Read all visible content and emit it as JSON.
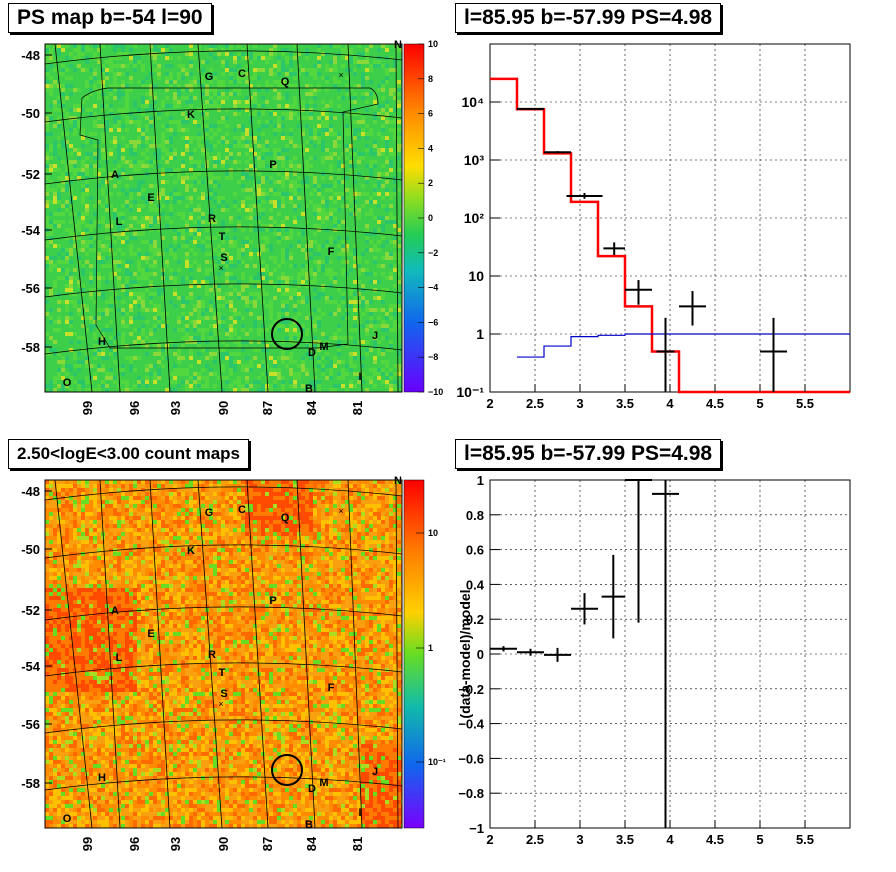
{
  "titles": {
    "ps_map": "PS map b=-54 l=90",
    "spectrum": "l=85.95 b=-57.99 PS=4.98",
    "count_map": "2.50<logE<3.00 count maps",
    "residual": "l=85.95 b=-57.99 PS=4.98"
  },
  "colors": {
    "data": "#000000",
    "model": "#ff0000",
    "background_model": "#0000cc",
    "grid": "#000000"
  },
  "maps": {
    "y_ticks": [
      "-48",
      "-50",
      "-52",
      "-54",
      "-56",
      "-58"
    ],
    "x_ticks": [
      "99",
      "96",
      "93",
      "90",
      "87",
      "84",
      "81"
    ],
    "ps_colorbar_ticks": [
      "10",
      "8",
      "6",
      "4",
      "2",
      "0",
      "−2",
      "−4",
      "−6",
      "−8",
      "−10"
    ],
    "count_colorbar_ticks": [
      "10",
      "1",
      "10⁻¹"
    ],
    "sources": [
      {
        "label": "N"
      },
      {
        "label": "G"
      },
      {
        "label": "C"
      },
      {
        "label": "Q"
      },
      {
        "label": "K"
      },
      {
        "label": "P"
      },
      {
        "label": "A"
      },
      {
        "label": "E"
      },
      {
        "label": "L"
      },
      {
        "label": "R"
      },
      {
        "label": "T"
      },
      {
        "label": "S"
      },
      {
        "label": "F"
      },
      {
        "label": "J"
      },
      {
        "label": "H"
      },
      {
        "label": "D"
      },
      {
        "label": "M"
      },
      {
        "label": "O"
      },
      {
        "label": "B"
      },
      {
        "label": "I"
      }
    ]
  },
  "chart_data": [
    {
      "type": "line",
      "panel": "spectrum",
      "title": "l=85.95 b=-57.99 PS=4.98",
      "xlim": [
        2,
        6
      ],
      "ylim": [
        0.1,
        100000
      ],
      "yscale": "log",
      "grid": true,
      "x_ticks": [
        "2",
        "2.5",
        "3",
        "3.5",
        "4",
        "4.5",
        "5",
        "5.5"
      ],
      "y_ticks": [
        "10⁴",
        "10³",
        "10²",
        "10",
        "1",
        "10⁻¹"
      ],
      "series": [
        {
          "role": "model",
          "style": "step",
          "bin_edges": [
            2.0,
            2.3,
            2.6,
            2.9,
            3.2,
            3.5,
            3.8,
            4.1,
            4.4,
            4.7,
            5.0,
            5.3,
            5.6,
            5.9,
            6.0
          ],
          "values": [
            25000,
            7500,
            1300,
            190,
            22,
            3,
            0.5,
            0.1,
            0.1,
            0.1,
            0.1,
            0.1,
            0.1,
            0.1
          ]
        },
        {
          "role": "background",
          "style": "step",
          "bin_edges": [
            2.3,
            2.6,
            2.9,
            3.2,
            3.5,
            6.0
          ],
          "values": [
            0.4,
            0.62,
            0.9,
            0.95,
            1.0
          ]
        },
        {
          "role": "data",
          "style": "errorbar",
          "points": [
            {
              "x": 2.45,
              "xerr": 0.15,
              "y": 7600,
              "ylo": 7400,
              "yhi": 7800
            },
            {
              "x": 2.75,
              "xerr": 0.15,
              "y": 1360,
              "ylo": 1300,
              "yhi": 1420
            },
            {
              "x": 3.05,
              "xerr": 0.2,
              "y": 240,
              "ylo": 215,
              "yhi": 270
            },
            {
              "x": 3.38,
              "xerr": 0.12,
              "y": 30,
              "ylo": 23,
              "yhi": 38
            },
            {
              "x": 3.65,
              "xerr": 0.15,
              "y": 5.8,
              "ylo": 3.2,
              "yhi": 8.5
            },
            {
              "x": 3.95,
              "xerr": 0.1,
              "y": 0.5,
              "ylo": 0.1,
              "yhi": 1.9
            },
            {
              "x": 4.25,
              "xerr": 0.15,
              "y": 3,
              "ylo": 1.4,
              "yhi": 5.5
            },
            {
              "x": 5.15,
              "xerr": 0.15,
              "y": 0.5,
              "ylo": 0.1,
              "yhi": 1.9
            }
          ]
        }
      ]
    },
    {
      "type": "scatter",
      "panel": "residual",
      "title": "l=85.95 b=-57.99 PS=4.98",
      "ylabel": "(data-model)/model",
      "xlim": [
        2,
        6
      ],
      "ylim": [
        -1,
        1
      ],
      "grid": true,
      "x_ticks": [
        "2",
        "2.5",
        "3",
        "3.5",
        "4",
        "4.5",
        "5",
        "5.5"
      ],
      "y_ticks": [
        "1",
        "0.8",
        "0.6",
        "0.4",
        "0.2",
        "0",
        "−0.2",
        "−0.4",
        "−0.6",
        "−0.8",
        "−1"
      ],
      "points": [
        {
          "x": 2.15,
          "xerr": 0.15,
          "y": 0.03,
          "ylo": 0.015,
          "yhi": 0.045
        },
        {
          "x": 2.45,
          "xerr": 0.15,
          "y": 0.01,
          "ylo": -0.01,
          "yhi": 0.03
        },
        {
          "x": 2.75,
          "xerr": 0.15,
          "y": -0.005,
          "ylo": -0.045,
          "yhi": 0.035
        },
        {
          "x": 3.05,
          "xerr": 0.15,
          "y": 0.26,
          "ylo": 0.17,
          "yhi": 0.35
        },
        {
          "x": 3.37,
          "xerr": 0.13,
          "y": 0.33,
          "ylo": 0.09,
          "yhi": 0.57
        },
        {
          "x": 3.65,
          "xerr": 0.15,
          "y": 1.0,
          "ylo": 0.18,
          "yhi": 1.0
        },
        {
          "x": 3.95,
          "xerr": 0.15,
          "y": 0.92,
          "ylo": -1.0,
          "yhi": 1.0
        }
      ]
    }
  ]
}
